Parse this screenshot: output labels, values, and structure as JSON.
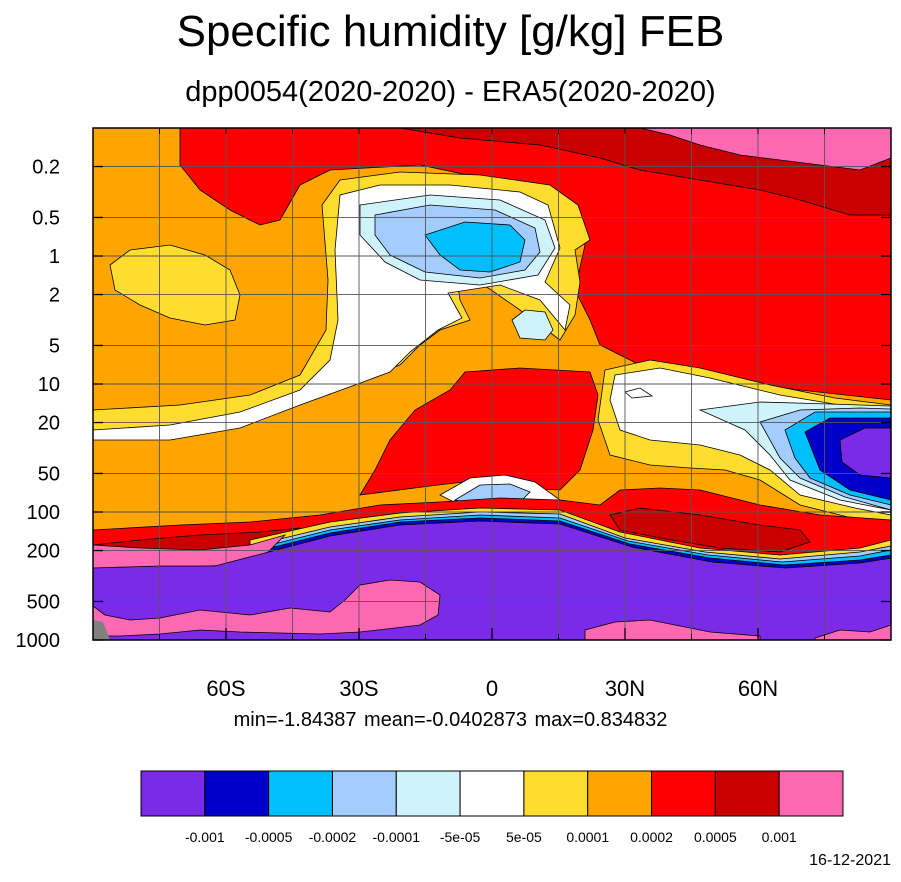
{
  "chart_data": {
    "type": "contour",
    "title": "Specific humidity [g/kg] FEB",
    "subtitle": "dpp0054(2020-2020) - ERA5(2020-2020)",
    "x_ticks": [
      "60S",
      "30S",
      "0",
      "30N",
      "60N"
    ],
    "x_tick_values": [
      -60,
      -30,
      0,
      30,
      60
    ],
    "xlim": [
      -90,
      90
    ],
    "y_ticks": [
      "0.2",
      "0.5",
      "1",
      "2",
      "5",
      "10",
      "20",
      "50",
      "100",
      "200",
      "500",
      "1000"
    ],
    "y_tick_values": [
      0.2,
      0.5,
      1,
      2,
      5,
      10,
      20,
      50,
      100,
      200,
      500,
      1000
    ],
    "y_scale": "log",
    "y_inverted": true,
    "ylim": [
      0.1,
      1000
    ],
    "stats": {
      "min": "-1.84387",
      "mean": "-0.0402873",
      "max": "0.834832"
    },
    "stats_text": "min=-1.84387   mean=-0.0402873   max=0.834832",
    "levels": [
      "-0.001",
      "-0.0005",
      "-0.0002",
      "-0.0001",
      "-5e-05",
      "5e-05",
      "0.0001",
      "0.0002",
      "0.0005",
      "0.001"
    ],
    "colors": [
      "#7b2be7",
      "#0000c8",
      "#00bfff",
      "#a3cdff",
      "#cff3fb",
      "#ffffff",
      "#ffdd2f",
      "#ffa500",
      "#ff0000",
      "#c80000",
      "#ff69b4"
    ],
    "missing_color": "#808080"
  },
  "footer": {
    "date": "16-12-2021"
  }
}
